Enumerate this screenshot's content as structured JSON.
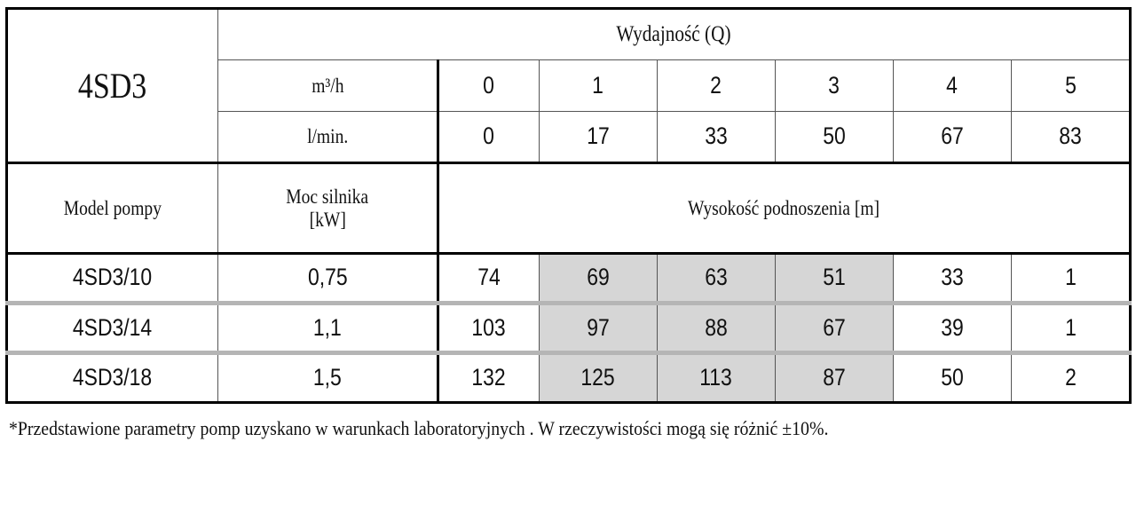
{
  "table": {
    "model_series": "4SD3",
    "flow_header": "Wydajność (Q)",
    "units": {
      "m3h_label": "m³/h",
      "lmin_label": "l/min."
    },
    "flow_m3h": [
      "0",
      "1",
      "2",
      "3",
      "4",
      "5"
    ],
    "flow_lmin": [
      "0",
      "17",
      "33",
      "50",
      "67",
      "83"
    ],
    "col_model_header": "Model pompy",
    "col_power_header_line1": "Moc silnika",
    "col_power_header_line2": "[kW]",
    "head_header": "Wysokość podnoszenia [m]",
    "rows": [
      {
        "model": "4SD3/10",
        "power": "0,75",
        "heads": [
          "74",
          "69",
          "63",
          "51",
          "33",
          "1"
        ]
      },
      {
        "model": "4SD3/14",
        "power": "1,1",
        "heads": [
          "103",
          "97",
          "88",
          "67",
          "39",
          "1"
        ]
      },
      {
        "model": "4SD3/18",
        "power": "1,5",
        "heads": [
          "132",
          "125",
          "113",
          "87",
          "50",
          "2"
        ]
      }
    ],
    "highlight_color": "#d6d6d6"
  },
  "footnote": "*Przedstawione parametry pomp uzyskano w warunkach laboratoryjnych . W rzeczywistości mogą się różnić ±10%."
}
